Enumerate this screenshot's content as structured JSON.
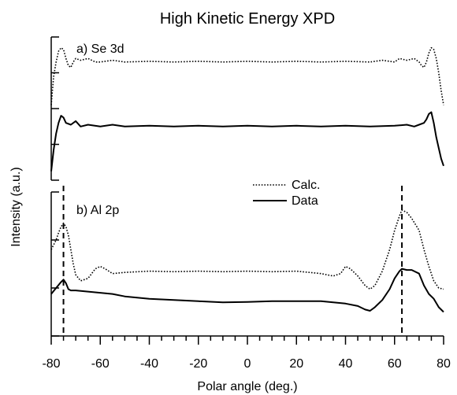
{
  "chart_data": {
    "type": "line",
    "title": "High Kinetic Energy XPD",
    "xlabel": "Polar angle (deg.)",
    "ylabel": "Intensity (a.u.)",
    "xlim": [
      -80,
      80
    ],
    "x_ticks": [
      "-80",
      "-60",
      "-40",
      "-20",
      "0",
      "20",
      "40",
      "60",
      "80"
    ],
    "x_minor_step": 5,
    "legend": {
      "placement": "middle-right",
      "entries": [
        {
          "label": "Calc.",
          "style": "dotted"
        },
        {
          "label": "Data",
          "style": "solid"
        }
      ]
    },
    "panels": [
      {
        "label": "a) Se 3d",
        "ylim": [
          0,
          4
        ],
        "y_ticks": [
          0,
          1,
          2,
          3,
          4
        ],
        "series": [
          {
            "style": "dotted",
            "x": [
              -80,
              -79,
              -78,
              -77,
              -76,
              -75,
              -74,
              -73,
              -72,
              -71,
              -70,
              -68,
              -65,
              -62,
              -60,
              -55,
              -50,
              -40,
              -30,
              -20,
              -10,
              0,
              10,
              20,
              30,
              40,
              50,
              55,
              60,
              62,
              65,
              68,
              70,
              71,
              72,
              73,
              74,
              75,
              76,
              77,
              78,
              79,
              80
            ],
            "y": [
              2.1,
              2.9,
              3.3,
              3.6,
              3.7,
              3.65,
              3.4,
              3.2,
              3.15,
              3.3,
              3.4,
              3.35,
              3.4,
              3.3,
              3.3,
              3.35,
              3.3,
              3.32,
              3.3,
              3.32,
              3.3,
              3.32,
              3.3,
              3.32,
              3.3,
              3.32,
              3.3,
              3.35,
              3.3,
              3.4,
              3.35,
              3.4,
              3.3,
              3.2,
              3.15,
              3.3,
              3.55,
              3.7,
              3.65,
              3.4,
              3.0,
              2.5,
              2.1
            ]
          },
          {
            "style": "solid",
            "x": [
              -80,
              -79,
              -78,
              -77,
              -76,
              -75,
              -74,
              -72,
              -70,
              -68,
              -65,
              -60,
              -55,
              -50,
              -40,
              -30,
              -20,
              -10,
              0,
              10,
              20,
              30,
              40,
              50,
              60,
              65,
              68,
              70,
              72,
              73,
              74,
              75,
              76,
              77,
              78,
              79,
              80
            ],
            "y": [
              0.25,
              0.85,
              1.3,
              1.6,
              1.8,
              1.75,
              1.6,
              1.55,
              1.65,
              1.5,
              1.55,
              1.5,
              1.55,
              1.5,
              1.52,
              1.5,
              1.52,
              1.5,
              1.52,
              1.5,
              1.52,
              1.5,
              1.52,
              1.5,
              1.52,
              1.55,
              1.5,
              1.55,
              1.6,
              1.7,
              1.85,
              1.9,
              1.6,
              1.2,
              0.9,
              0.6,
              0.4
            ]
          }
        ]
      },
      {
        "label": "b) Al 2p",
        "ylim": [
          0,
          6
        ],
        "y_ticks": [
          0,
          2,
          4,
          6
        ],
        "series": [
          {
            "style": "dotted",
            "x": [
              -80,
              -78,
              -77,
              -76,
              -75,
              -74,
              -73,
              -72,
              -71,
              -70,
              -68,
              -65,
              -62,
              -60,
              -58,
              -55,
              -50,
              -40,
              -30,
              -20,
              -10,
              0,
              10,
              20,
              30,
              35,
              38,
              40,
              42,
              45,
              48,
              50,
              52,
              55,
              58,
              60,
              62,
              63,
              65,
              67,
              70,
              72,
              74,
              76,
              78,
              80
            ],
            "y": [
              3.6,
              4.0,
              4.3,
              4.55,
              4.7,
              4.55,
              4.2,
              3.6,
              3.0,
              2.55,
              2.3,
              2.4,
              2.8,
              2.9,
              2.8,
              2.6,
              2.65,
              2.7,
              2.68,
              2.7,
              2.68,
              2.7,
              2.68,
              2.7,
              2.6,
              2.5,
              2.6,
              2.9,
              2.8,
              2.5,
              2.1,
              1.95,
              2.1,
              2.7,
              3.6,
              4.4,
              5.0,
              5.25,
              5.15,
              4.9,
              4.4,
              3.6,
              2.9,
              2.3,
              2.0,
              1.95
            ]
          },
          {
            "style": "solid",
            "x": [
              -80,
              -78,
              -76,
              -75,
              -74,
              -73,
              -72,
              -70,
              -65,
              -60,
              -55,
              -50,
              -40,
              -30,
              -20,
              -10,
              0,
              10,
              20,
              30,
              40,
              45,
              48,
              50,
              52,
              55,
              58,
              60,
              62,
              63,
              65,
              67,
              70,
              72,
              74,
              76,
              78,
              80
            ],
            "y": [
              1.75,
              2.0,
              2.25,
              2.35,
              2.2,
              1.95,
              1.9,
              1.9,
              1.85,
              1.8,
              1.75,
              1.65,
              1.55,
              1.5,
              1.45,
              1.4,
              1.42,
              1.45,
              1.45,
              1.45,
              1.35,
              1.25,
              1.1,
              1.05,
              1.2,
              1.5,
              1.95,
              2.4,
              2.7,
              2.8,
              2.75,
              2.75,
              2.6,
              2.1,
              1.75,
              1.55,
              1.2,
              1.0
            ]
          }
        ],
        "reference_lines": [
          {
            "x": -75,
            "style": "dashed"
          },
          {
            "x": 63,
            "style": "dashed"
          }
        ]
      }
    ]
  }
}
